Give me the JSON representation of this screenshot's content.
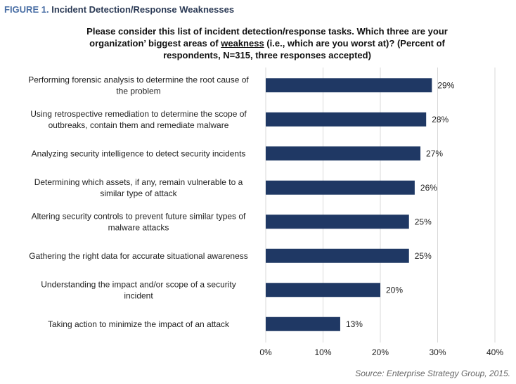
{
  "figure": {
    "prefix": "FIGURE 1.",
    "title": "Incident Detection/Response Weaknesses"
  },
  "question": {
    "part1": "Please consider this list of incident detection/response tasks. Which three are your organization’ biggest areas of ",
    "underlined": "weakness",
    "part2": " (i.e., which are you worst at)? (Percent of respondents, N=315, three responses accepted)"
  },
  "source": "Source: Enterprise Strategy Group, 2015.",
  "colors": {
    "bar": "#1f3864",
    "grid": "#d9d9d9"
  },
  "chart_data": {
    "type": "bar",
    "orientation": "horizontal",
    "categories": [
      [
        "Performing forensic analysis to determine the root cause of",
        "the problem"
      ],
      [
        "Using retrospective remediation to determine the scope of",
        "outbreaks, contain them and  remediate malware"
      ],
      [
        "Analyzing security intelligence to detect security incidents"
      ],
      [
        "Determining which assets, if any, remain vulnerable to a",
        "similar type of attack"
      ],
      [
        "Altering security controls to prevent future similar types of",
        "malware attacks"
      ],
      [
        "Gathering the right data for accurate situational awareness"
      ],
      [
        "Understanding the impact and/or scope of a security",
        "incident"
      ],
      [
        "Taking action to minimize the impact of an attack"
      ]
    ],
    "values": [
      29,
      28,
      27,
      26,
      25,
      25,
      20,
      13
    ],
    "value_labels": [
      "29%",
      "28%",
      "27%",
      "26%",
      "25%",
      "25%",
      "20%",
      "13%"
    ],
    "xlim": [
      0,
      40
    ],
    "xticks": [
      0,
      10,
      20,
      30,
      40
    ],
    "xtick_labels": [
      "0%",
      "10%",
      "20%",
      "30%",
      "40%"
    ],
    "grid": true
  }
}
